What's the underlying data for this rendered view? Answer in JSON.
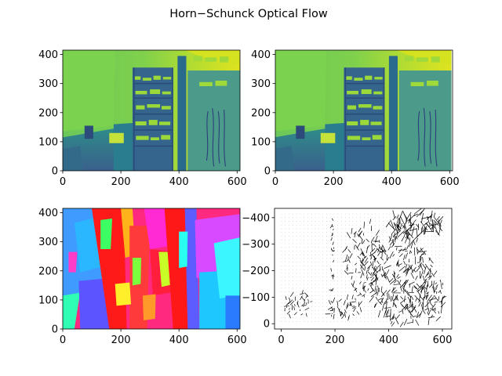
{
  "title": "Horn−Schunck Optical Flow",
  "chart_data": [
    {
      "type": "image",
      "colormap": "viridis",
      "xlim": [
        0,
        610
      ],
      "ylim": [
        415,
        0
      ],
      "xticks": [
        0,
        200,
        400,
        600
      ],
      "yticks": [
        0,
        100,
        200,
        300,
        400
      ],
      "xtick_labels": [
        "0",
        "200",
        "400",
        "600"
      ],
      "ytick_labels": [
        "0",
        "100",
        "200",
        "300",
        "400"
      ]
    },
    {
      "type": "image",
      "colormap": "viridis",
      "xlim": [
        0,
        610
      ],
      "ylim": [
        415,
        0
      ],
      "xticks": [
        0,
        200,
        400,
        600
      ],
      "yticks": [
        0,
        100,
        200,
        300,
        400
      ],
      "xtick_labels": [
        "0",
        "200",
        "400",
        "600"
      ],
      "ytick_labels": [
        "0",
        "100",
        "200",
        "300",
        "400"
      ]
    },
    {
      "type": "image",
      "colormap": "hsv",
      "xlim": [
        0,
        610
      ],
      "ylim": [
        415,
        0
      ],
      "xticks": [
        0,
        200,
        400,
        600
      ],
      "yticks": [
        0,
        100,
        200,
        300,
        400
      ],
      "xtick_labels": [
        "0",
        "200",
        "400",
        "600"
      ],
      "ytick_labels": [
        "0",
        "100",
        "200",
        "300",
        "400"
      ]
    },
    {
      "type": "quiver",
      "xlim": [
        -25,
        635
      ],
      "ylim": [
        -435,
        20
      ],
      "xticks": [
        0,
        200,
        400,
        600
      ],
      "yticks": [
        0,
        -100,
        -200,
        -300,
        -400
      ],
      "xtick_labels": [
        "0",
        "200",
        "400",
        "600"
      ],
      "ytick_labels": [
        "0",
        "−100",
        "−200",
        "−300",
        "−400"
      ]
    }
  ]
}
